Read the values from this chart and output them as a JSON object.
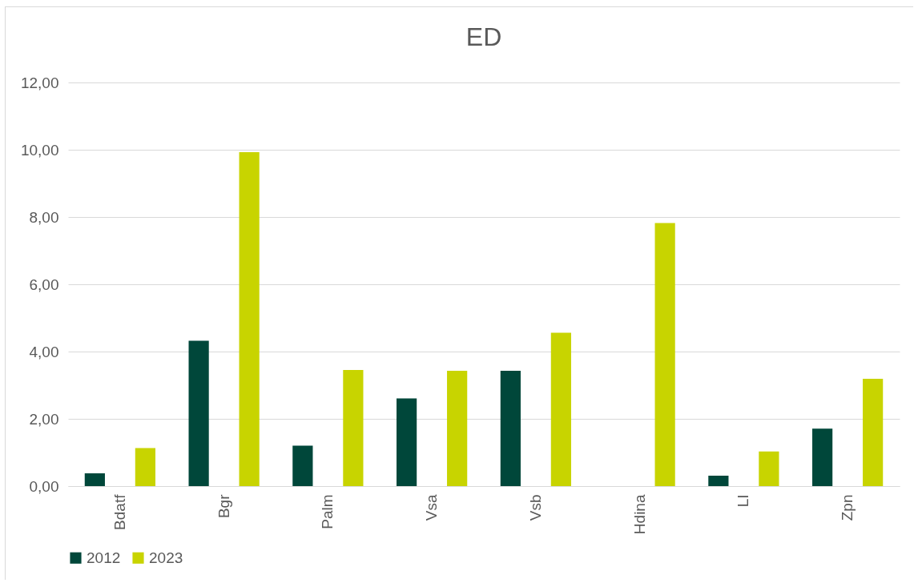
{
  "chart_data": {
    "type": "bar",
    "title": "ED",
    "categories": [
      "Bdatf",
      "Bgr",
      "Palm",
      "Vsa",
      "Vsb",
      "Hdina",
      "LI",
      "Zpn"
    ],
    "series": [
      {
        "name": "2012",
        "color": "#00473a",
        "values": [
          0.38,
          4.32,
          1.2,
          2.61,
          3.43,
          null,
          0.31,
          1.71
        ]
      },
      {
        "name": "2023",
        "color": "#c8d400",
        "values": [
          1.13,
          9.93,
          3.45,
          3.43,
          4.56,
          7.82,
          1.03,
          3.19
        ]
      }
    ],
    "ylim": [
      0,
      12
    ],
    "yticks": [
      {
        "value": 0,
        "label": "0,00"
      },
      {
        "value": 2,
        "label": "2,00"
      },
      {
        "value": 4,
        "label": "4,00"
      },
      {
        "value": 6,
        "label": "6,00"
      },
      {
        "value": 8,
        "label": "8,00"
      },
      {
        "value": 10,
        "label": "10,00"
      },
      {
        "value": 12,
        "label": "12,00"
      }
    ],
    "grid": "y",
    "legend": "bottom"
  }
}
